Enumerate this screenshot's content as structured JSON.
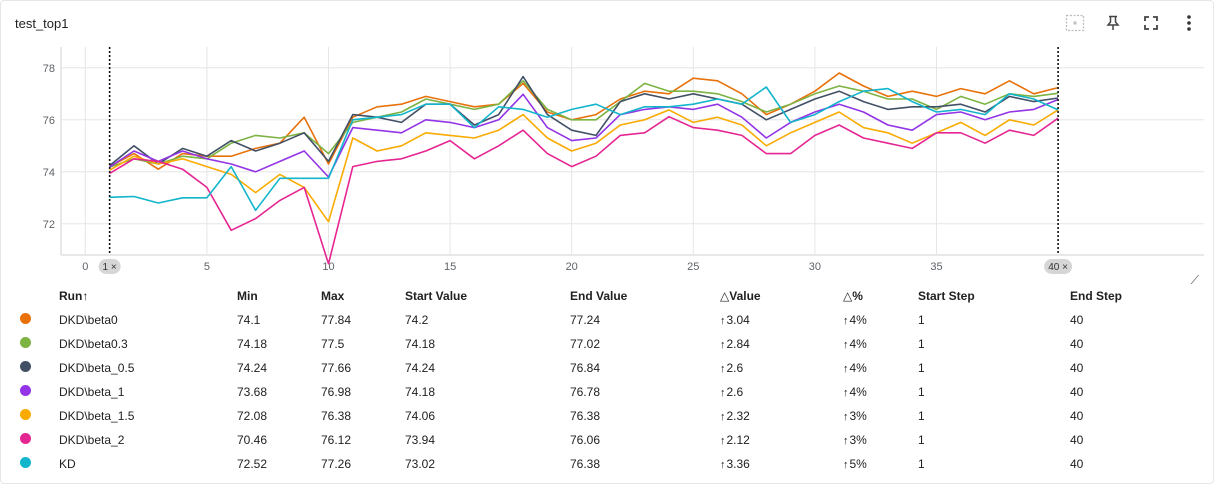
{
  "card": {
    "title": "test_top1"
  },
  "toolbar": {
    "icons": [
      "fit-domain-icon",
      "pin-icon",
      "fullscreen-icon",
      "more-vert-icon"
    ]
  },
  "chart_data": {
    "type": "line",
    "xlim": [
      -1,
      46
    ],
    "ylim": [
      70.8,
      78.8
    ],
    "x_ticks": [
      0,
      5,
      10,
      15,
      20,
      25,
      30,
      35
    ],
    "y_ticks": [
      72,
      74,
      76,
      78
    ],
    "step_range": {
      "start": "1",
      "end": "40"
    },
    "x": [
      1,
      2,
      3,
      4,
      5,
      6,
      7,
      8,
      9,
      10,
      11,
      12,
      13,
      14,
      15,
      16,
      17,
      18,
      19,
      20,
      21,
      22,
      23,
      24,
      25,
      26,
      27,
      28,
      29,
      30,
      31,
      32,
      33,
      34,
      35,
      36,
      37,
      38,
      39,
      40
    ],
    "series": [
      {
        "name": "DKD\\beta0",
        "color": "#e8710a",
        "values": [
          74.2,
          74.7,
          74.1,
          74.7,
          74.6,
          74.6,
          74.9,
          75.1,
          76.1,
          74.3,
          76.1,
          76.5,
          76.6,
          76.9,
          76.7,
          76.5,
          76.6,
          77.4,
          76.3,
          76.0,
          76.2,
          76.8,
          77.1,
          77.0,
          77.6,
          77.5,
          77.0,
          76.2,
          76.6,
          77.1,
          77.8,
          77.3,
          76.9,
          77.1,
          76.9,
          77.2,
          77.0,
          77.5,
          77.0,
          77.24
        ]
      },
      {
        "name": "DKD\\beta0.3",
        "color": "#7cb342",
        "values": [
          74.18,
          74.5,
          74.3,
          74.6,
          74.5,
          75.1,
          75.4,
          75.3,
          75.5,
          74.7,
          75.9,
          76.1,
          76.3,
          76.8,
          76.6,
          76.4,
          76.6,
          77.5,
          76.4,
          76.0,
          76.0,
          76.7,
          77.4,
          77.1,
          77.1,
          77.0,
          76.7,
          76.3,
          76.6,
          77.0,
          77.3,
          77.1,
          76.8,
          76.8,
          76.4,
          76.9,
          76.6,
          77.0,
          76.9,
          77.02
        ]
      },
      {
        "name": "DKD\\beta_0.5",
        "color": "#425066",
        "values": [
          74.24,
          75.0,
          74.3,
          74.9,
          74.6,
          75.2,
          74.8,
          75.1,
          75.5,
          74.4,
          76.2,
          76.1,
          75.9,
          76.6,
          76.6,
          75.8,
          76.2,
          77.66,
          76.2,
          75.6,
          75.4,
          76.7,
          77.0,
          76.8,
          77.0,
          76.8,
          76.6,
          76.0,
          76.4,
          76.8,
          77.1,
          76.7,
          76.4,
          76.5,
          76.5,
          76.6,
          76.3,
          76.9,
          76.7,
          76.84
        ]
      },
      {
        "name": "DKD\\beta_1",
        "color": "#9334e6",
        "values": [
          74.18,
          74.8,
          74.4,
          74.8,
          74.5,
          74.3,
          74.0,
          74.4,
          74.8,
          73.8,
          75.7,
          75.6,
          75.5,
          76.0,
          75.9,
          75.7,
          76.0,
          76.98,
          75.7,
          75.2,
          75.3,
          76.2,
          76.4,
          76.5,
          76.4,
          76.6,
          76.1,
          75.3,
          75.9,
          76.3,
          76.6,
          76.3,
          75.8,
          75.6,
          76.2,
          76.3,
          76.0,
          76.3,
          76.4,
          76.78
        ]
      },
      {
        "name": "DKD\\beta_1.5",
        "color": "#f9ab00",
        "values": [
          74.06,
          74.6,
          74.3,
          74.5,
          74.2,
          73.9,
          73.2,
          73.9,
          73.4,
          72.08,
          75.3,
          74.8,
          75.0,
          75.5,
          75.4,
          75.3,
          75.6,
          76.2,
          75.3,
          74.8,
          75.1,
          75.8,
          76.0,
          76.38,
          75.9,
          76.1,
          75.8,
          75.0,
          75.5,
          75.9,
          76.3,
          75.7,
          75.5,
          75.1,
          75.5,
          75.9,
          75.4,
          76.0,
          75.8,
          76.38
        ]
      },
      {
        "name": "DKD\\beta_2",
        "color": "#e52592",
        "values": [
          73.94,
          74.5,
          74.4,
          74.1,
          73.4,
          71.75,
          72.2,
          72.9,
          73.4,
          70.46,
          74.2,
          74.4,
          74.5,
          74.8,
          75.2,
          74.5,
          75.0,
          75.6,
          74.7,
          74.2,
          74.6,
          75.4,
          75.5,
          76.12,
          75.7,
          75.6,
          75.4,
          74.7,
          74.7,
          75.4,
          75.8,
          75.3,
          75.1,
          74.9,
          75.5,
          75.5,
          75.1,
          75.6,
          75.4,
          76.06
        ]
      },
      {
        "name": "KD",
        "color": "#12b5cb",
        "values": [
          73.02,
          73.05,
          72.8,
          73.0,
          73.0,
          74.2,
          72.52,
          73.75,
          73.75,
          73.75,
          76.0,
          76.1,
          76.2,
          76.6,
          76.6,
          75.7,
          76.5,
          76.4,
          76.1,
          76.4,
          76.6,
          76.2,
          76.5,
          76.5,
          76.6,
          76.8,
          76.6,
          77.26,
          75.9,
          76.2,
          76.7,
          77.1,
          77.2,
          76.7,
          76.3,
          76.4,
          76.2,
          77.0,
          76.8,
          76.38
        ]
      }
    ]
  },
  "table": {
    "headers": {
      "run": "Run↑",
      "min": "Min",
      "max": "Max",
      "start_value": "Start Value",
      "end_value": "End Value",
      "delta_value": "△Value",
      "delta_pct": "△%",
      "start_step": "Start Step",
      "end_step": "End Step"
    },
    "arrow": "↑",
    "rows": [
      {
        "color": "#e8710a",
        "run": "DKD\\beta0",
        "min": "74.1",
        "max": "77.84",
        "start_value": "74.2",
        "end_value": "77.24",
        "delta_value": "3.04",
        "delta_pct": "4%",
        "start_step": "1",
        "end_step": "40"
      },
      {
        "color": "#7cb342",
        "run": "DKD\\beta0.3",
        "min": "74.18",
        "max": "77.5",
        "start_value": "74.18",
        "end_value": "77.02",
        "delta_value": "2.84",
        "delta_pct": "4%",
        "start_step": "1",
        "end_step": "40"
      },
      {
        "color": "#425066",
        "run": "DKD\\beta_0.5",
        "min": "74.24",
        "max": "77.66",
        "start_value": "74.24",
        "end_value": "76.84",
        "delta_value": "2.6",
        "delta_pct": "4%",
        "start_step": "1",
        "end_step": "40"
      },
      {
        "color": "#9334e6",
        "run": "DKD\\beta_1",
        "min": "73.68",
        "max": "76.98",
        "start_value": "74.18",
        "end_value": "76.78",
        "delta_value": "2.6",
        "delta_pct": "4%",
        "start_step": "1",
        "end_step": "40"
      },
      {
        "color": "#f9ab00",
        "run": "DKD\\beta_1.5",
        "min": "72.08",
        "max": "76.38",
        "start_value": "74.06",
        "end_value": "76.38",
        "delta_value": "2.32",
        "delta_pct": "3%",
        "start_step": "1",
        "end_step": "40"
      },
      {
        "color": "#e52592",
        "run": "DKD\\beta_2",
        "min": "70.46",
        "max": "76.12",
        "start_value": "73.94",
        "end_value": "76.06",
        "delta_value": "2.12",
        "delta_pct": "3%",
        "start_step": "1",
        "end_step": "40"
      },
      {
        "color": "#12b5cb",
        "run": "KD",
        "min": "72.52",
        "max": "77.26",
        "start_value": "73.02",
        "end_value": "76.38",
        "delta_value": "3.36",
        "delta_pct": "5%",
        "start_step": "1",
        "end_step": "40"
      }
    ]
  }
}
